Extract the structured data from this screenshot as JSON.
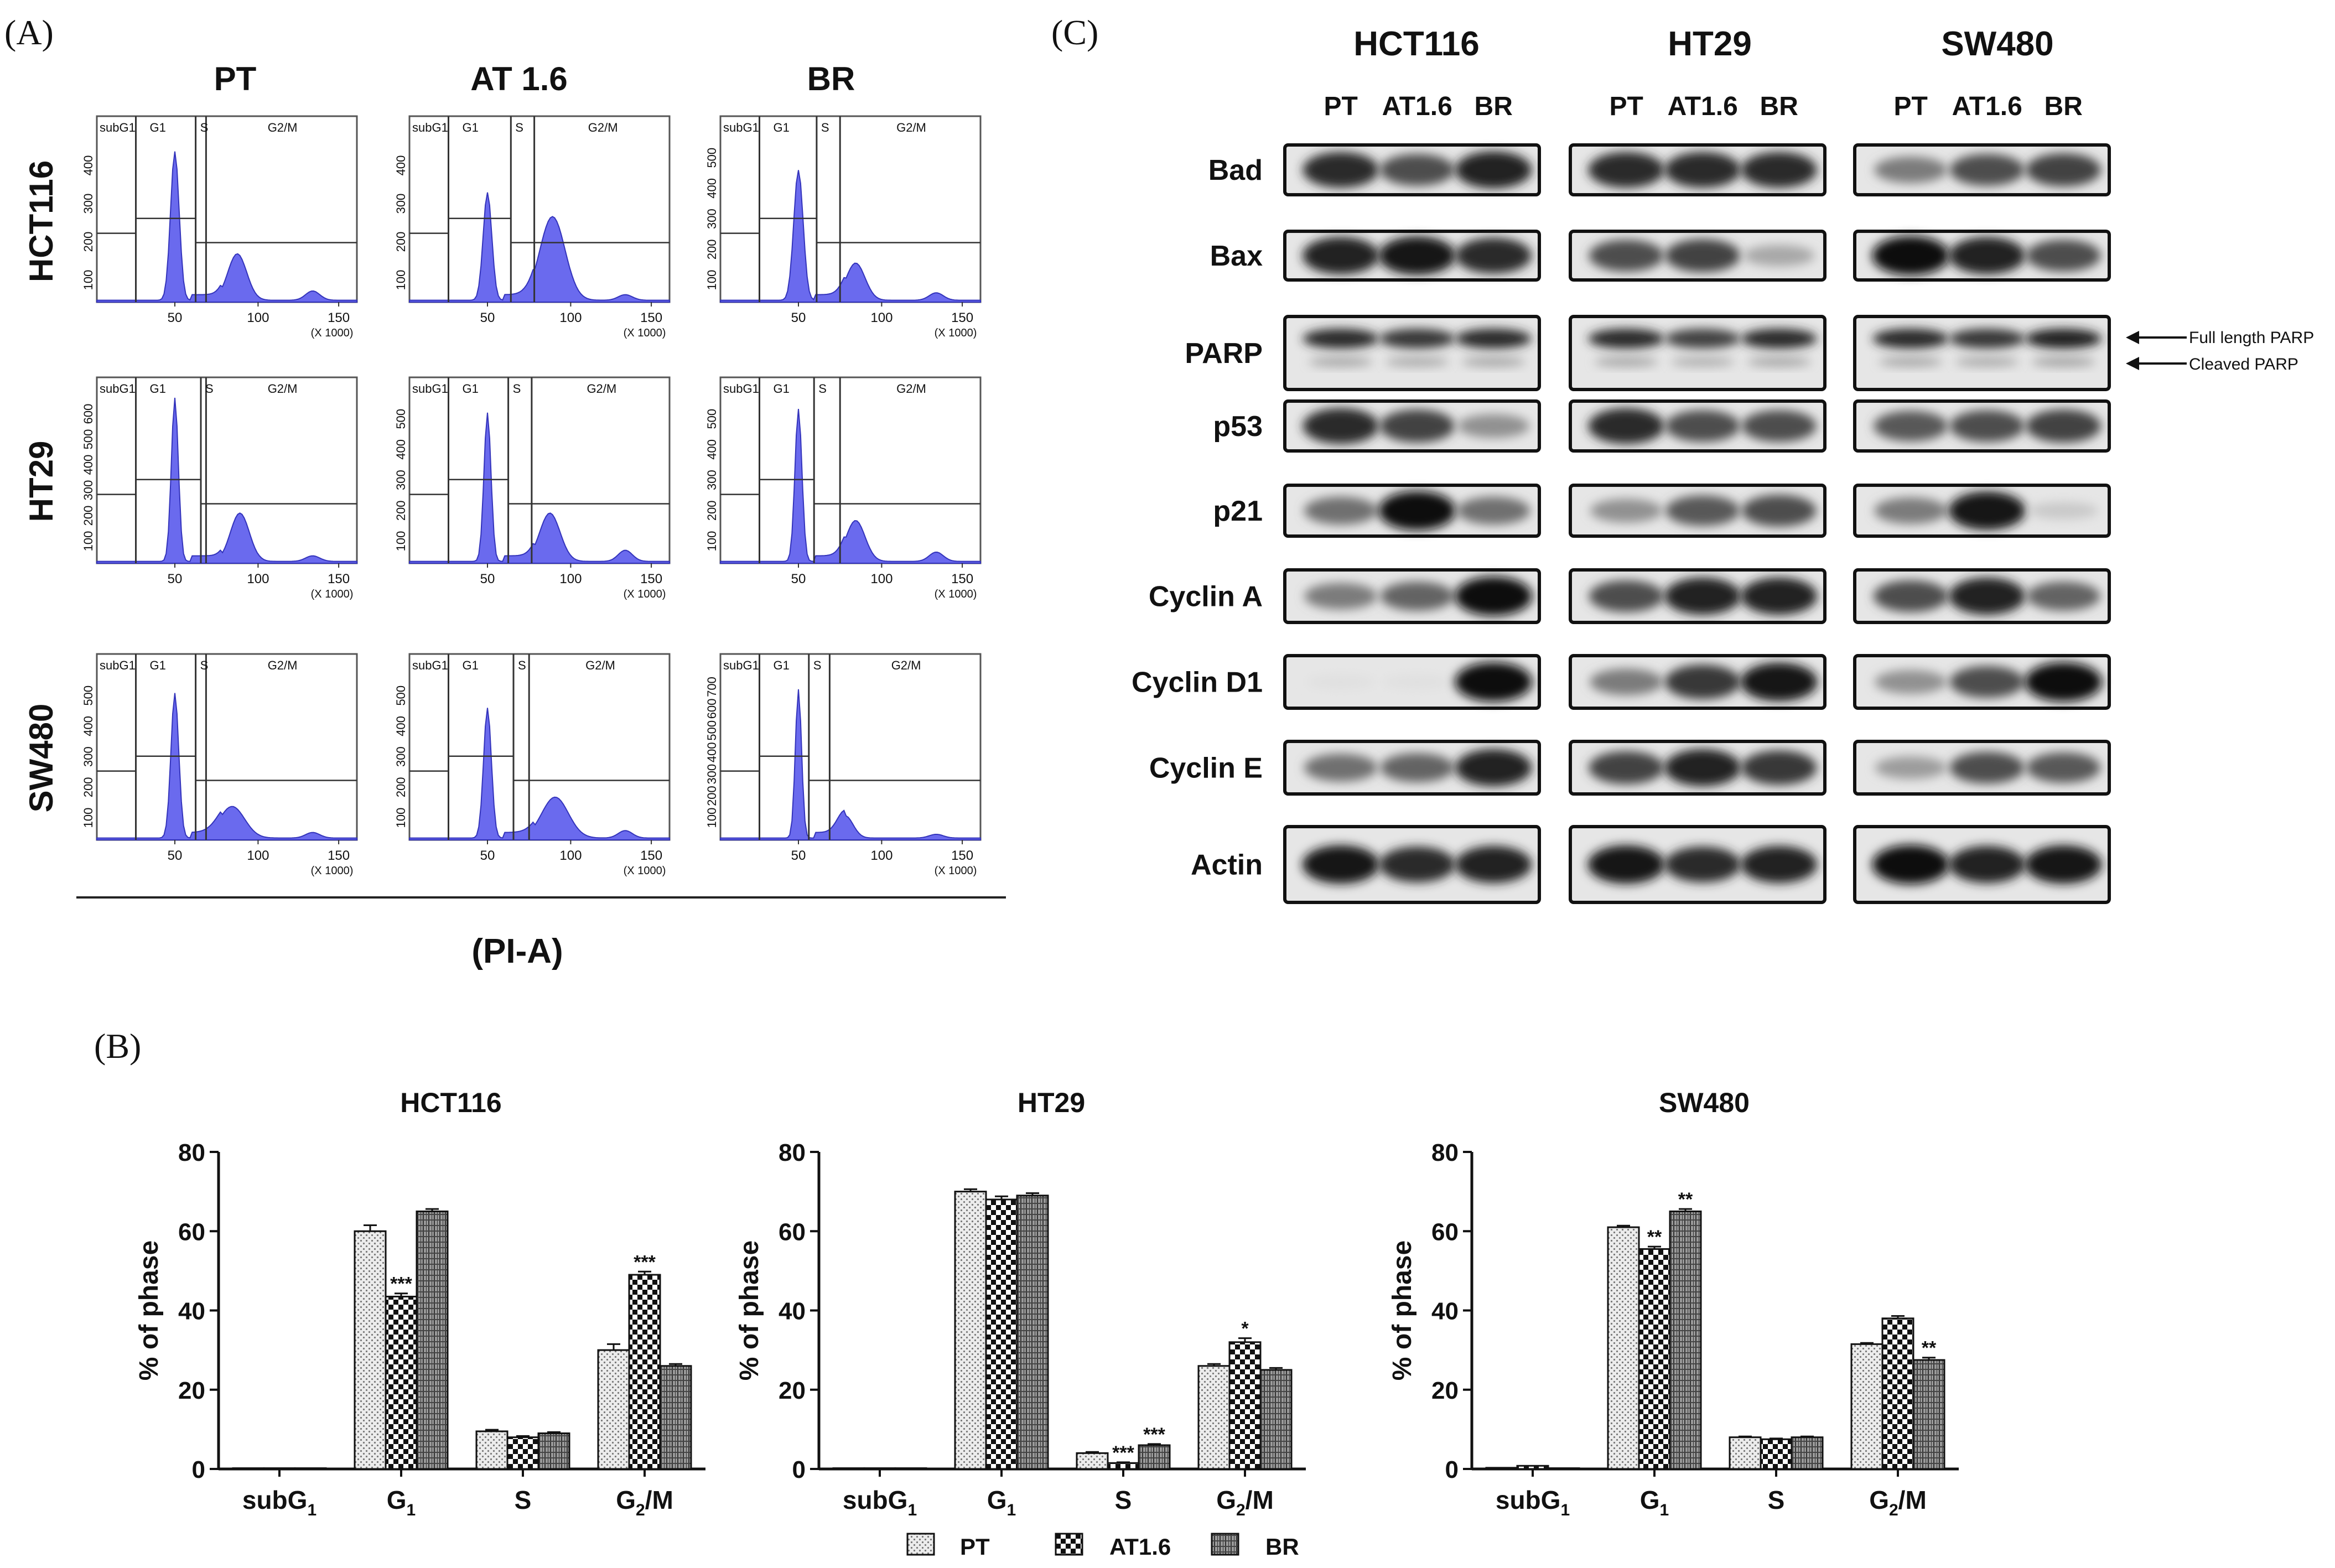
{
  "panel_labels": {
    "a": "(A)",
    "b": "(B)",
    "c": "(C)"
  },
  "panel_a": {
    "columns": [
      "PT",
      "AT 1.6",
      "BR"
    ],
    "rows": [
      "HCT116",
      "HT29",
      "SW480"
    ],
    "gate_labels": [
      "subG1",
      "G1",
      "S",
      "G2/M"
    ],
    "x_ticks": [
      "50",
      "100",
      "150"
    ],
    "x_unit": "(X 1000)",
    "xlabel": "(PI-A)",
    "y_ticks_by_plot": [
      [
        "100",
        "200",
        "300",
        "400"
      ],
      [
        "100",
        "200",
        "300",
        "400"
      ],
      [
        "100",
        "200",
        "300",
        "400",
        "500"
      ],
      [
        "100",
        "200",
        "300",
        "400",
        "500",
        "600"
      ],
      [
        "100",
        "200",
        "300",
        "400",
        "500"
      ],
      [
        "100",
        "200",
        "300",
        "400",
        "500"
      ],
      [
        "100",
        "200",
        "300",
        "400",
        "500"
      ],
      [
        "100",
        "200",
        "300",
        "400",
        "500"
      ],
      [
        "100",
        "200",
        "300",
        "400",
        "500",
        "600",
        "700"
      ]
    ]
  },
  "panel_c": {
    "cell_lines": [
      "HCT116",
      "HT29",
      "SW480"
    ],
    "lanes": [
      "PT",
      "AT1.6",
      "BR"
    ],
    "proteins": [
      "Bad",
      "Bax",
      "PARP",
      "p53",
      "p21",
      "Cyclin A",
      "Cyclin D1",
      "Cyclin E",
      "Actin"
    ],
    "annotations": [
      "Full length PARP",
      "Cleaved PARP"
    ],
    "band_intensity": [
      [
        [
          0.85,
          0.7,
          0.9
        ],
        [
          0.85,
          0.85,
          0.85
        ],
        [
          0.5,
          0.7,
          0.75
        ]
      ],
      [
        [
          0.9,
          0.95,
          0.85
        ],
        [
          0.7,
          0.75,
          0.3
        ],
        [
          0.98,
          0.9,
          0.7
        ]
      ],
      [
        [
          0.85,
          0.8,
          0.85
        ],
        [
          0.85,
          0.75,
          0.85
        ],
        [
          0.85,
          0.8,
          0.9
        ]
      ],
      [
        [
          0.85,
          0.75,
          0.4
        ],
        [
          0.85,
          0.7,
          0.7
        ],
        [
          0.65,
          0.7,
          0.75
        ]
      ],
      [
        [
          0.55,
          0.98,
          0.55
        ],
        [
          0.4,
          0.65,
          0.7
        ],
        [
          0.5,
          0.95,
          0.15
        ]
      ],
      [
        [
          0.5,
          0.6,
          0.98
        ],
        [
          0.7,
          0.9,
          0.9
        ],
        [
          0.7,
          0.9,
          0.6
        ]
      ],
      [
        [
          0.05,
          0.05,
          0.98
        ],
        [
          0.5,
          0.8,
          0.95
        ],
        [
          0.4,
          0.7,
          0.98
        ]
      ],
      [
        [
          0.55,
          0.6,
          0.9
        ],
        [
          0.75,
          0.9,
          0.8
        ],
        [
          0.35,
          0.7,
          0.65
        ]
      ],
      [
        [
          0.95,
          0.85,
          0.9
        ],
        [
          0.95,
          0.85,
          0.9
        ],
        [
          0.98,
          0.9,
          0.95
        ]
      ]
    ]
  },
  "chart_data": [
    {
      "type": "bar",
      "title": "HCT116",
      "categories": [
        "subG1",
        "G1",
        "S",
        "G2/M"
      ],
      "series": [
        {
          "name": "PT",
          "values": [
            0.2,
            60,
            9.5,
            30
          ]
        },
        {
          "name": "AT1.6",
          "values": [
            0.2,
            43.5,
            8,
            49
          ]
        },
        {
          "name": "BR",
          "values": [
            0.2,
            65,
            9,
            26
          ]
        }
      ],
      "errors": [
        [
          0,
          1.5,
          0.4,
          1.5
        ],
        [
          0,
          0.8,
          0.3,
          0.8
        ],
        [
          0,
          0.6,
          0.3,
          0.5
        ]
      ],
      "significance": [
        [
          "",
          "",
          "",
          ""
        ],
        [
          "",
          "***",
          "",
          "***"
        ],
        [
          "",
          "",
          "",
          ""
        ]
      ],
      "xlabel": "",
      "ylabel": "% of phase",
      "ylim": [
        0,
        80
      ],
      "yticks": [
        0,
        20,
        40,
        60,
        80
      ]
    },
    {
      "type": "bar",
      "title": "HT29",
      "categories": [
        "subG1",
        "G1",
        "S",
        "G2/M"
      ],
      "series": [
        {
          "name": "PT",
          "values": [
            0.2,
            70,
            4,
            26
          ]
        },
        {
          "name": "AT1.6",
          "values": [
            0.2,
            68,
            1.5,
            32
          ]
        },
        {
          "name": "BR",
          "values": [
            0.2,
            69,
            6,
            25
          ]
        }
      ],
      "errors": [
        [
          0,
          0.6,
          0.3,
          0.5
        ],
        [
          0,
          0.8,
          0.2,
          1
        ],
        [
          0,
          0.6,
          0.3,
          0.5
        ]
      ],
      "significance": [
        [
          "",
          "",
          "",
          ""
        ],
        [
          "",
          "",
          "***",
          "*"
        ],
        [
          "",
          "",
          "***",
          ""
        ]
      ],
      "xlabel": "",
      "ylabel": "% of phase",
      "ylim": [
        0,
        80
      ],
      "yticks": [
        0,
        20,
        40,
        60,
        80
      ]
    },
    {
      "type": "bar",
      "title": "SW480",
      "categories": [
        "subG1",
        "G1",
        "S",
        "G2/M"
      ],
      "series": [
        {
          "name": "PT",
          "values": [
            0.3,
            61,
            8,
            31.5
          ]
        },
        {
          "name": "AT1.6",
          "values": [
            0.8,
            55.5,
            7.5,
            38
          ]
        },
        {
          "name": "BR",
          "values": [
            0.2,
            65,
            8,
            27.5
          ]
        }
      ],
      "errors": [
        [
          0,
          0.4,
          0.2,
          0.3
        ],
        [
          0,
          0.6,
          0.2,
          0.6
        ],
        [
          0,
          0.6,
          0.2,
          0.6
        ]
      ],
      "significance": [
        [
          "",
          "",
          "",
          ""
        ],
        [
          "",
          "**",
          "",
          ""
        ],
        [
          "",
          "**",
          "",
          "**"
        ]
      ],
      "xlabel": "",
      "ylabel": "% of phase",
      "ylim": [
        0,
        80
      ],
      "yticks": [
        0,
        20,
        40,
        60,
        80
      ]
    }
  ],
  "legend": [
    "PT",
    "AT1.6",
    "BR"
  ]
}
